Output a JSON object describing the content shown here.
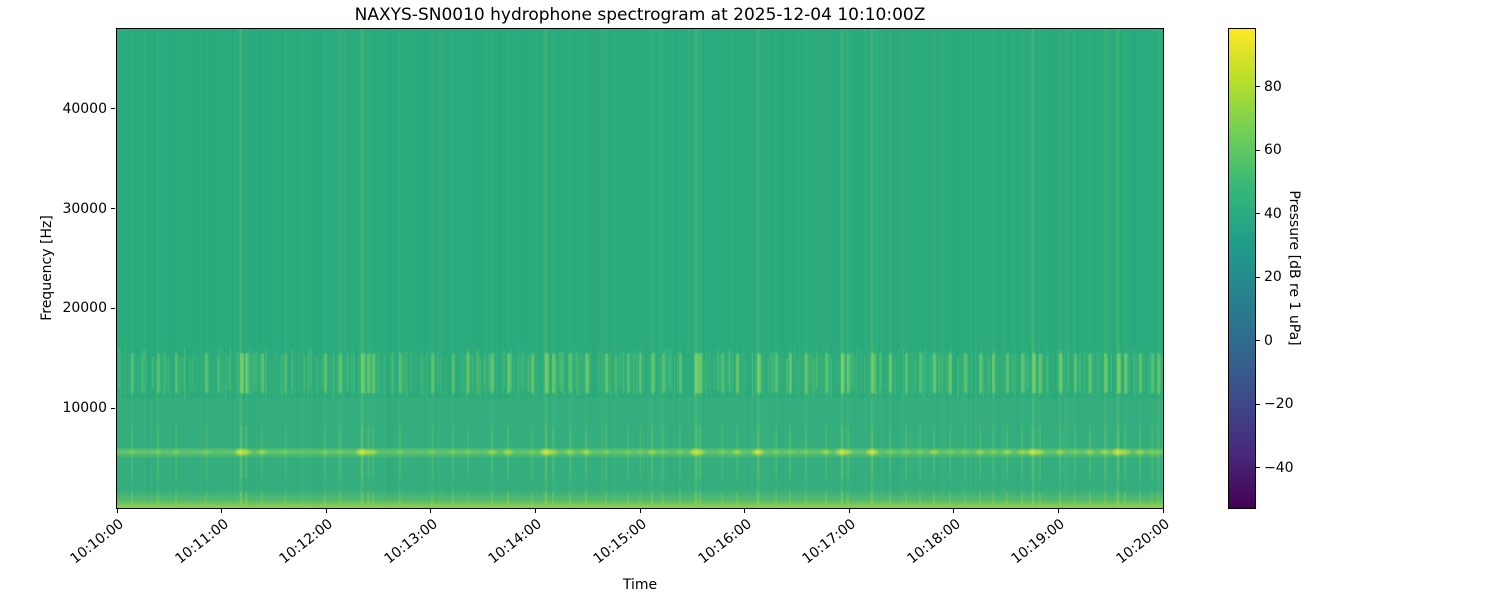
{
  "chart_data": {
    "type": "heatmap",
    "subtype": "spectrogram",
    "title": "NAXYS-SN0010 hydrophone spectrogram at 2025-12-04 10:10:00Z",
    "xlabel": "Time",
    "ylabel": "Frequency [Hz]",
    "x_tick_labels": [
      "10:10:00",
      "10:11:00",
      "10:12:00",
      "10:13:00",
      "10:14:00",
      "10:15:00",
      "10:16:00",
      "10:17:00",
      "10:18:00",
      "10:19:00",
      "10:20:00"
    ],
    "x_span_seconds": 600,
    "y_tick_values": [
      10000,
      20000,
      30000,
      40000
    ],
    "y_tick_labels": [
      "10000",
      "20000",
      "30000",
      "40000"
    ],
    "ylim": [
      0,
      48000
    ],
    "grid": false,
    "colorbar": {
      "label": "Pressure [dB re 1 uPa]",
      "tick_values": [
        80,
        60,
        40,
        20,
        0,
        -20,
        -40
      ],
      "tick_labels": [
        "80",
        "60",
        "40",
        "20",
        "0",
        "−20",
        "−40"
      ],
      "vmin": -52.6,
      "vmax": 98.2,
      "colormap": "viridis",
      "colormap_stops": [
        "#440154",
        "#482878",
        "#3e4989",
        "#31688e",
        "#26828e",
        "#1f9e89",
        "#35b779",
        "#6ece58",
        "#b5de2b",
        "#fde725"
      ]
    },
    "colors": {
      "background_field": "#2aab7d",
      "transient_blob": "#e8eb32",
      "streak": "#a0e45f",
      "bottom_edge": "#8bd24b",
      "spine": "#000000"
    },
    "background_level_db": 44,
    "features": {
      "tonal_band": {
        "center_hz": 5600,
        "bandwidth_hz": 700,
        "level_db": 55,
        "note": "persistent tonal band with bright transient bursts"
      },
      "noise_band": {
        "low_hz": 11500,
        "high_hz": 15500,
        "level_db": 48,
        "note": "streaky broadband noise band"
      },
      "low_freq_band": {
        "below_hz": 1800,
        "level_db": 70,
        "note": "elevated broadband energy at bottom edge"
      },
      "step_hz": 11000
    },
    "transients_sec": [
      {
        "t": 8.6,
        "s": 0.5
      },
      {
        "t": 23.5,
        "s": 0.45
      },
      {
        "t": 33.8,
        "s": 0.5
      },
      {
        "t": 51.0,
        "s": 0.55
      },
      {
        "t": 71.1,
        "s": 1.0
      },
      {
        "t": 74.0,
        "s": 0.8
      },
      {
        "t": 83.2,
        "s": 0.6
      },
      {
        "t": 96.4,
        "s": 0.4
      },
      {
        "t": 119.3,
        "s": 0.55
      },
      {
        "t": 127.9,
        "s": 0.5
      },
      {
        "t": 140.5,
        "s": 0.95
      },
      {
        "t": 144.0,
        "s": 0.7
      },
      {
        "t": 146.9,
        "s": 0.6
      },
      {
        "t": 162.3,
        "s": 0.5
      },
      {
        "t": 180.7,
        "s": 0.55
      },
      {
        "t": 192.7,
        "s": 0.5
      },
      {
        "t": 201.3,
        "s": 0.45
      },
      {
        "t": 215.1,
        "s": 0.6
      },
      {
        "t": 224.3,
        "s": 0.75
      },
      {
        "t": 238.1,
        "s": 0.5
      },
      {
        "t": 246.1,
        "s": 0.95
      },
      {
        "t": 250.1,
        "s": 0.7
      },
      {
        "t": 259.9,
        "s": 0.6
      },
      {
        "t": 269.1,
        "s": 0.7
      },
      {
        "t": 280.5,
        "s": 0.5
      },
      {
        "t": 293.1,
        "s": 0.55
      },
      {
        "t": 300.0,
        "s": 0.45
      },
      {
        "t": 306.9,
        "s": 0.6
      },
      {
        "t": 313.2,
        "s": 0.5
      },
      {
        "t": 322.9,
        "s": 0.45
      },
      {
        "t": 332.1,
        "s": 1.0
      },
      {
        "t": 334.4,
        "s": 0.7
      },
      {
        "t": 347.0,
        "s": 0.5
      },
      {
        "t": 355.6,
        "s": 0.6
      },
      {
        "t": 367.7,
        "s": 0.9
      },
      {
        "t": 378.0,
        "s": 0.5
      },
      {
        "t": 386.0,
        "s": 0.55
      },
      {
        "t": 395.2,
        "s": 0.45
      },
      {
        "t": 406.7,
        "s": 0.6
      },
      {
        "t": 415.8,
        "s": 0.95
      },
      {
        "t": 419.3,
        "s": 0.6
      },
      {
        "t": 433.1,
        "s": 0.9
      },
      {
        "t": 443.4,
        "s": 0.5
      },
      {
        "t": 452.6,
        "s": 0.55
      },
      {
        "t": 460.6,
        "s": 0.5
      },
      {
        "t": 468.7,
        "s": 0.6
      },
      {
        "t": 477.8,
        "s": 0.55
      },
      {
        "t": 486.4,
        "s": 0.5
      },
      {
        "t": 495.0,
        "s": 0.6
      },
      {
        "t": 502.5,
        "s": 0.55
      },
      {
        "t": 510.5,
        "s": 0.6
      },
      {
        "t": 519.1,
        "s": 0.65
      },
      {
        "t": 525.4,
        "s": 0.9
      },
      {
        "t": 529.4,
        "s": 0.7
      },
      {
        "t": 540.9,
        "s": 0.6
      },
      {
        "t": 549.5,
        "s": 0.55
      },
      {
        "t": 558.1,
        "s": 0.6
      },
      {
        "t": 566.7,
        "s": 0.65
      },
      {
        "t": 574.1,
        "s": 1.0
      },
      {
        "t": 578.2,
        "s": 0.8
      },
      {
        "t": 586.8,
        "s": 0.6
      },
      {
        "t": 593.7,
        "s": 0.55
      },
      {
        "t": 597.2,
        "s": 0.5
      }
    ]
  }
}
